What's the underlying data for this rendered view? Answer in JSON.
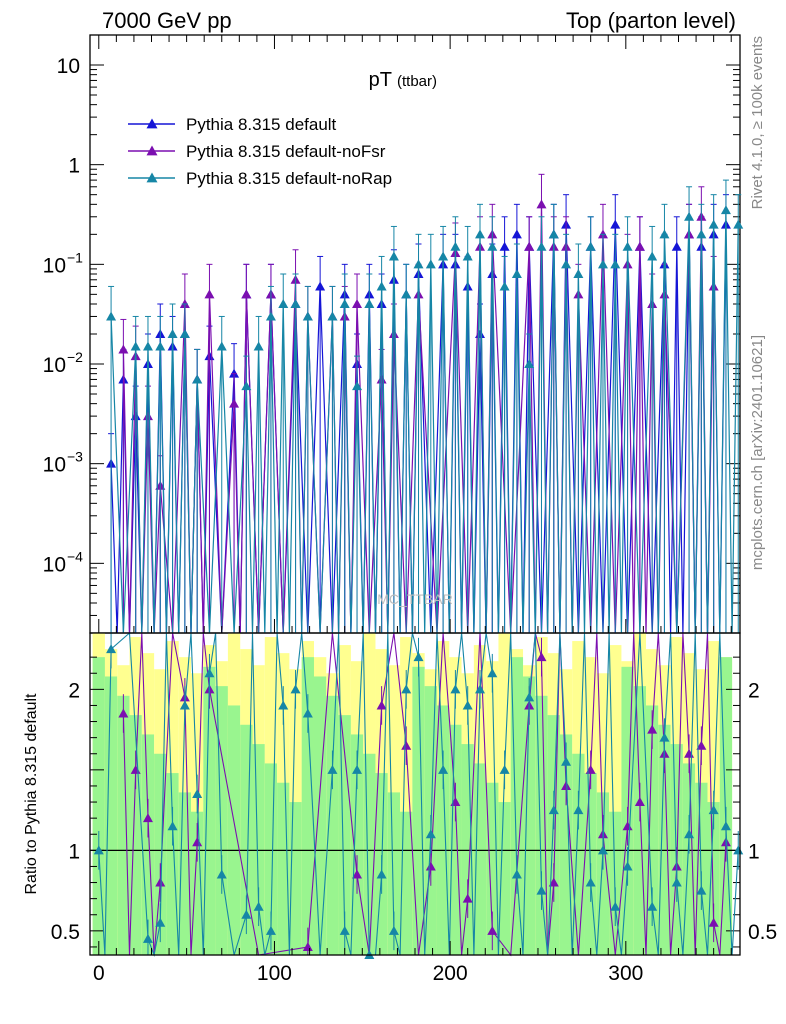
{
  "header": {
    "left": "7000 GeV pp",
    "right": "Top (parton level)"
  },
  "side_labels": {
    "rivet": "Rivet 4.1.0, ≥ 100k events",
    "mcplots": "mcplots.cern.ch [arXiv:2401.10621]"
  },
  "watermark": "MC_TTBAR",
  "chart_data": [
    {
      "type": "line",
      "name": "main",
      "title": "pT",
      "title_sub": "(ttbar)",
      "xlabel": "",
      "ylabel": "",
      "yscale": "log",
      "xlim": [
        -5,
        365
      ],
      "ylim": [
        2e-05,
        20
      ],
      "y_ticks": [
        {
          "value": 10,
          "label": "10"
        },
        {
          "value": 1,
          "label": "1"
        },
        {
          "value": 0.1,
          "label": "10",
          "exp": "−1"
        },
        {
          "value": 0.01,
          "label": "10",
          "exp": "−2"
        },
        {
          "value": 0.001,
          "label": "10",
          "exp": "−3"
        },
        {
          "value": 0.0001,
          "label": "10",
          "exp": "−4"
        }
      ],
      "legend": [
        {
          "label": "Pythia 8.315 default",
          "color": "#1515d6"
        },
        {
          "label": "Pythia 8.315 default-noFsr",
          "color": "#7b0fb0"
        },
        {
          "label": "Pythia 8.315 default-noRap",
          "color": "#1686a6"
        }
      ],
      "series": [
        {
          "name": "Pythia 8.315 default",
          "color": "#1515d6",
          "points": [
            [
              7,
              0.001
            ],
            [
              14,
              0.007
            ],
            [
              21,
              0.003
            ],
            [
              28,
              0.01
            ],
            [
              35,
              0.02
            ],
            [
              42,
              0.015
            ],
            [
              49,
              0.02
            ],
            [
              56,
              0.007
            ],
            [
              63,
              0.012
            ],
            [
              77,
              0.008
            ],
            [
              84,
              0.05
            ],
            [
              98,
              0.05
            ],
            [
              112,
              0.04
            ],
            [
              126,
              0.06
            ],
            [
              140,
              0.05
            ],
            [
              147,
              0.01
            ],
            [
              154,
              0.05
            ],
            [
              161,
              0.04
            ],
            [
              168,
              0.07
            ],
            [
              175,
              0.05
            ],
            [
              182,
              0.08
            ],
            [
              196,
              0.1
            ],
            [
              203,
              0.1
            ],
            [
              210,
              0.06
            ],
            [
              217,
              0.02
            ],
            [
              224,
              0.08
            ],
            [
              231,
              0.15
            ],
            [
              238,
              0.2
            ],
            [
              245,
              0.15
            ],
            [
              259,
              0.2
            ],
            [
              266,
              0.25
            ],
            [
              280,
              0.15
            ],
            [
              294,
              0.25
            ],
            [
              308,
              0.15
            ],
            [
              322,
              0.1
            ],
            [
              329,
              0.15
            ],
            [
              336,
              0.2
            ],
            [
              343,
              0.15
            ],
            [
              350,
              0.2
            ],
            [
              357,
              0.25
            ]
          ]
        },
        {
          "name": "Pythia 8.315 default-noFsr",
          "color": "#7b0fb0",
          "points": [
            [
              14,
              0.014
            ],
            [
              21,
              0.012
            ],
            [
              28,
              0.003
            ],
            [
              35,
              0.0006
            ],
            [
              49,
              0.04
            ],
            [
              56,
              0.007
            ],
            [
              63,
              0.05
            ],
            [
              77,
              0.004
            ],
            [
              84,
              0.05
            ],
            [
              98,
              0.05
            ],
            [
              112,
              0.07
            ],
            [
              119,
              0.03
            ],
            [
              133,
              0.03
            ],
            [
              140,
              0.03
            ],
            [
              147,
              0.04
            ],
            [
              161,
              0.007
            ],
            [
              168,
              0.02
            ],
            [
              182,
              0.05
            ],
            [
              203,
              0.13
            ],
            [
              217,
              0.15
            ],
            [
              224,
              0.2
            ],
            [
              245,
              0.15
            ],
            [
              252,
              0.4
            ],
            [
              259,
              0.15
            ],
            [
              266,
              0.15
            ],
            [
              273,
              0.05
            ],
            [
              287,
              0.2
            ],
            [
              301,
              0.1
            ],
            [
              308,
              0.15
            ],
            [
              315,
              0.04
            ],
            [
              322,
              0.05
            ],
            [
              336,
              0.2
            ],
            [
              343,
              0.3
            ],
            [
              350,
              0.06
            ]
          ]
        },
        {
          "name": "Pythia 8.315 default-noRap",
          "color": "#1686a6",
          "points": [
            [
              7,
              0.03
            ],
            [
              21,
              0.015
            ],
            [
              28,
              0.015
            ],
            [
              35,
              0.015
            ],
            [
              42,
              0.02
            ],
            [
              49,
              0.02
            ],
            [
              56,
              0.007
            ],
            [
              70,
              0.015
            ],
            [
              84,
              0.006
            ],
            [
              91,
              0.015
            ],
            [
              98,
              0.03
            ],
            [
              105,
              0.04
            ],
            [
              112,
              0.04
            ],
            [
              119,
              0.03
            ],
            [
              133,
              0.03
            ],
            [
              140,
              0.04
            ],
            [
              147,
              0.006
            ],
            [
              154,
              0.04
            ],
            [
              161,
              0.06
            ],
            [
              168,
              0.12
            ],
            [
              175,
              0.05
            ],
            [
              182,
              0.1
            ],
            [
              189,
              0.1
            ],
            [
              196,
              0.12
            ],
            [
              203,
              0.15
            ],
            [
              210,
              0.12
            ],
            [
              217,
              0.2
            ],
            [
              224,
              0.15
            ],
            [
              231,
              0.06
            ],
            [
              238,
              0.08
            ],
            [
              245,
              0.01
            ],
            [
              252,
              0.15
            ],
            [
              259,
              0.2
            ],
            [
              266,
              0.1
            ],
            [
              273,
              0.08
            ],
            [
              280,
              0.15
            ],
            [
              287,
              0.1
            ],
            [
              294,
              0.1
            ],
            [
              301,
              0.15
            ],
            [
              315,
              0.12
            ],
            [
              322,
              0.2
            ],
            [
              336,
              0.3
            ],
            [
              343,
              0.2
            ],
            [
              350,
              0.25
            ],
            [
              357,
              0.35
            ],
            [
              364,
              0.25
            ]
          ]
        }
      ]
    },
    {
      "type": "line",
      "name": "ratio",
      "ylabel": "Ratio to Pythia 8.315 default",
      "xlabel": "",
      "yscale": "linear",
      "xlim": [
        -5,
        365
      ],
      "ylim": [
        0.35,
        2.35
      ],
      "reference_line": 1,
      "y_ticks": [
        {
          "value": 2,
          "label": "2"
        },
        {
          "value": 1,
          "label": "1"
        },
        {
          "value": 0.5,
          "label": "0.5"
        }
      ],
      "x_ticks": [
        {
          "value": 0,
          "label": "0"
        },
        {
          "value": 100,
          "label": "100"
        },
        {
          "value": 200,
          "label": "200"
        },
        {
          "value": 300,
          "label": "300"
        }
      ],
      "series": [
        {
          "name": "Pythia 8.315 default-noFsr",
          "color": "#7b0fb0",
          "points": [
            [
              14,
              1.85
            ],
            [
              21,
              1.5
            ],
            [
              28,
              1.2
            ],
            [
              35,
              0.8
            ],
            [
              49,
              1.95
            ],
            [
              56,
              1.05
            ],
            [
              63,
              2.0
            ],
            [
              119,
              0.4
            ],
            [
              147,
              0.85
            ],
            [
              161,
              1.9
            ],
            [
              175,
              1.65
            ],
            [
              189,
              0.9
            ],
            [
              203,
              1.3
            ],
            [
              210,
              0.7
            ],
            [
              224,
              0.5
            ],
            [
              245,
              1.9
            ],
            [
              252,
              2.2
            ],
            [
              259,
              0.8
            ],
            [
              266,
              1.4
            ],
            [
              280,
              1.5
            ],
            [
              287,
              1.1
            ],
            [
              301,
              1.15
            ],
            [
              308,
              1.3
            ],
            [
              315,
              1.75
            ],
            [
              322,
              1.6
            ],
            [
              329,
              0.9
            ],
            [
              336,
              1.6
            ],
            [
              343,
              1.65
            ],
            [
              350,
              0.55
            ],
            [
              357,
              1.05
            ]
          ]
        },
        {
          "name": "Pythia 8.315 default-noRap",
          "color": "#1686a6",
          "points": [
            [
              0,
              1.0
            ],
            [
              7,
              2.25
            ],
            [
              28,
              0.45
            ],
            [
              35,
              0.55
            ],
            [
              42,
              1.15
            ],
            [
              49,
              1.9
            ],
            [
              56,
              1.35
            ],
            [
              63,
              2.1
            ],
            [
              70,
              0.85
            ],
            [
              84,
              0.6
            ],
            [
              91,
              0.65
            ],
            [
              98,
              0.5
            ],
            [
              105,
              1.9
            ],
            [
              112,
              2.0
            ],
            [
              119,
              1.85
            ],
            [
              133,
              1.5
            ],
            [
              140,
              0.5
            ],
            [
              147,
              1.5
            ],
            [
              154,
              0.35
            ],
            [
              161,
              0.85
            ],
            [
              168,
              0.5
            ],
            [
              175,
              2.0
            ],
            [
              182,
              2.2
            ],
            [
              189,
              1.1
            ],
            [
              196,
              1.5
            ],
            [
              203,
              2.0
            ],
            [
              210,
              1.9
            ],
            [
              217,
              2.0
            ],
            [
              224,
              2.1
            ],
            [
              231,
              1.5
            ],
            [
              238,
              0.85
            ],
            [
              245,
              1.95
            ],
            [
              252,
              0.75
            ],
            [
              259,
              1.25
            ],
            [
              266,
              1.55
            ],
            [
              273,
              1.25
            ],
            [
              280,
              0.8
            ],
            [
              287,
              1.0
            ],
            [
              294,
              0.65
            ],
            [
              301,
              0.9
            ],
            [
              315,
              0.65
            ],
            [
              322,
              1.7
            ],
            [
              329,
              0.8
            ],
            [
              336,
              1.1
            ],
            [
              343,
              0.75
            ],
            [
              350,
              1.25
            ],
            [
              357,
              1.15
            ],
            [
              364,
              1.0
            ]
          ]
        }
      ]
    }
  ]
}
